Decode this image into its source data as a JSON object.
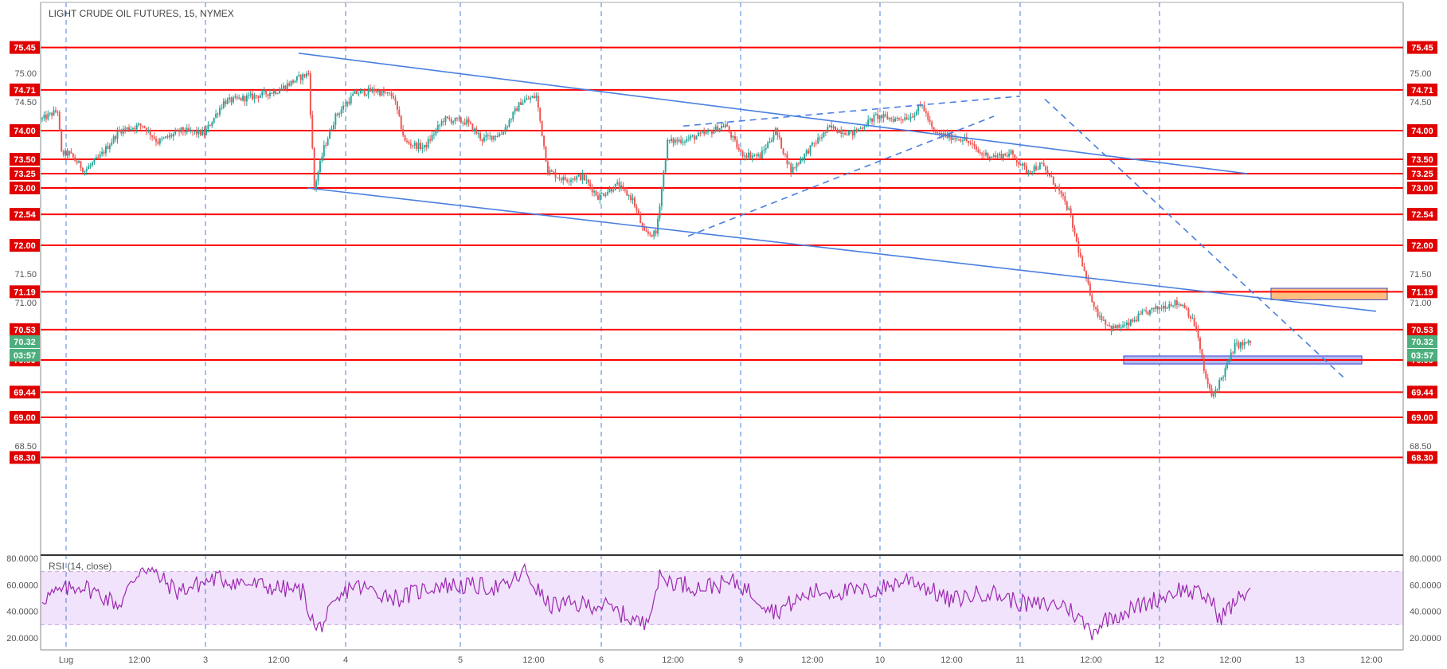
{
  "chart_data": {
    "type": "candlestick",
    "title": "LIGHT CRUDE OIL FUTURES, 15, NYMEX",
    "colors": {
      "up": "#26a69a",
      "down": "#ef5350",
      "level_line": "#ff0000",
      "trend_line": "#4a7fe0",
      "day_separator": "#4a7fe0",
      "rsi_line": "#9c27b0",
      "rsi_band": "#f1e3fb",
      "current_price_badge": "#4caf7d",
      "resistance_zone": "#ffbf80",
      "support_zone": "#b4b9f0"
    },
    "ylim": [
      68.3,
      75.7
    ],
    "y_ticks": [
      "75.00",
      "74.50",
      "74.00",
      "73.50",
      "73.00",
      "72.50",
      "72.00",
      "71.50",
      "71.00",
      "70.50",
      "70.00",
      "69.50",
      "69.00",
      "68.50"
    ],
    "x_ticks": [
      "Lug",
      "12:00",
      "3",
      "12:00",
      "4",
      "5",
      "12:00",
      "6",
      "12:00",
      "9",
      "12:00",
      "10",
      "12:00",
      "11",
      "12:00",
      "12",
      "12:00",
      "13",
      "12:00"
    ],
    "day_separator_labels": [
      "Lug",
      "3",
      "4",
      "5",
      "6",
      "9",
      "10",
      "11",
      "12"
    ],
    "levels": [
      {
        "value": 75.45,
        "label": "75.45"
      },
      {
        "value": 74.71,
        "label": "74.71"
      },
      {
        "value": 74.0,
        "label": "74.00"
      },
      {
        "value": 73.5,
        "label": "73.50"
      },
      {
        "value": 73.25,
        "label": "73.25"
      },
      {
        "value": 73.0,
        "label": "73.00"
      },
      {
        "value": 72.54,
        "label": "72.54"
      },
      {
        "value": 72.0,
        "label": "72.00"
      },
      {
        "value": 71.19,
        "label": "71.19"
      },
      {
        "value": 70.53,
        "label": "70.53"
      },
      {
        "value": 70.0,
        "label": "70.00"
      },
      {
        "value": 69.44,
        "label": "69.44"
      },
      {
        "value": 69.0,
        "label": "69.00"
      },
      {
        "value": 68.3,
        "label": "68.30"
      }
    ],
    "last_price": "70.32",
    "countdown": "03:57",
    "zones": [
      {
        "kind": "resistance",
        "from": "Jul 12 ~15:00",
        "to": "Jul 13 ~03:00",
        "low": 71.05,
        "high": 71.25
      },
      {
        "kind": "support",
        "from": "Jul 11 ~15:30",
        "to": "Jul 13 ~02:00",
        "low": 69.93,
        "high": 70.07
      }
    ],
    "trendlines": [
      {
        "style": "solid",
        "from": [
          "Jul 3 ~13:00",
          75.35
        ],
        "to": [
          "Jul 12 ~19:00",
          73.25
        ]
      },
      {
        "style": "solid",
        "from": [
          "Jul 3 ~13:00",
          73.0
        ],
        "to": [
          "Jul 13 ~05:00",
          70.85
        ]
      },
      {
        "style": "dashed",
        "from": [
          "Jul 6 ~12:00",
          74.08
        ],
        "to": [
          "Jul 10 ~23:00",
          74.6
        ]
      },
      {
        "style": "dashed",
        "from": [
          "Jul 6 ~12:00",
          72.16
        ],
        "to": [
          "Jul 10 ~22:00",
          74.25
        ]
      },
      {
        "style": "dashed",
        "from": [
          "Jul 11 ~01:00",
          74.55
        ],
        "to": [
          "Jul 13 ~02:00",
          69.66
        ]
      }
    ],
    "price_path": [
      [
        0,
        74.2
      ],
      [
        8,
        74.35
      ],
      [
        10,
        73.6
      ],
      [
        14,
        73.6
      ],
      [
        22,
        73.3
      ],
      [
        30,
        73.55
      ],
      [
        40,
        74.0
      ],
      [
        52,
        74.1
      ],
      [
        60,
        73.8
      ],
      [
        72,
        74.0
      ],
      [
        84,
        73.95
      ],
      [
        94,
        74.5
      ],
      [
        110,
        74.6
      ],
      [
        122,
        74.7
      ],
      [
        132,
        74.9
      ],
      [
        138,
        75.0
      ],
      [
        141,
        73.0
      ],
      [
        146,
        73.7
      ],
      [
        152,
        74.25
      ],
      [
        162,
        74.65
      ],
      [
        172,
        74.7
      ],
      [
        182,
        74.6
      ],
      [
        188,
        73.8
      ],
      [
        198,
        73.7
      ],
      [
        208,
        74.2
      ],
      [
        220,
        74.15
      ],
      [
        228,
        73.85
      ],
      [
        238,
        73.95
      ],
      [
        248,
        74.5
      ],
      [
        256,
        74.6
      ],
      [
        262,
        73.3
      ],
      [
        270,
        73.15
      ],
      [
        280,
        73.2
      ],
      [
        288,
        72.85
      ],
      [
        298,
        73.05
      ],
      [
        306,
        72.8
      ],
      [
        312,
        72.2
      ],
      [
        318,
        72.2
      ],
      [
        324,
        73.8
      ],
      [
        334,
        73.85
      ],
      [
        344,
        73.95
      ],
      [
        354,
        74.1
      ],
      [
        362,
        73.6
      ],
      [
        372,
        73.55
      ],
      [
        380,
        74.0
      ],
      [
        388,
        73.3
      ],
      [
        398,
        73.7
      ],
      [
        408,
        74.05
      ],
      [
        420,
        73.95
      ],
      [
        432,
        74.25
      ],
      [
        442,
        74.2
      ],
      [
        450,
        74.25
      ],
      [
        456,
        74.45
      ],
      [
        462,
        73.95
      ],
      [
        470,
        73.9
      ],
      [
        478,
        73.85
      ],
      [
        486,
        73.6
      ],
      [
        494,
        73.55
      ],
      [
        502,
        73.6
      ],
      [
        510,
        73.3
      ],
      [
        518,
        73.4
      ],
      [
        526,
        73.0
      ],
      [
        532,
        72.6
      ],
      [
        540,
        71.5
      ],
      [
        546,
        70.85
      ],
      [
        554,
        70.55
      ],
      [
        562,
        70.6
      ],
      [
        570,
        70.8
      ],
      [
        578,
        70.9
      ],
      [
        586,
        71.0
      ],
      [
        592,
        70.95
      ],
      [
        598,
        70.55
      ],
      [
        602,
        69.8
      ],
      [
        606,
        69.35
      ],
      [
        612,
        69.75
      ],
      [
        618,
        70.25
      ],
      [
        626,
        70.3
      ]
    ],
    "rsi": {
      "title": "RSI (14, close)",
      "ylim": [
        10,
        86
      ],
      "y_ticks": [
        "80.0000",
        "60.0000",
        "40.0000",
        "20.0000"
      ],
      "bands": [
        30,
        70
      ],
      "anchors": [
        [
          0,
          50
        ],
        [
          20,
          60
        ],
        [
          40,
          45
        ],
        [
          52,
          75
        ],
        [
          70,
          55
        ],
        [
          90,
          65
        ],
        [
          110,
          60
        ],
        [
          135,
          55
        ],
        [
          142,
          25
        ],
        [
          160,
          60
        ],
        [
          185,
          50
        ],
        [
          205,
          60
        ],
        [
          240,
          58
        ],
        [
          250,
          70
        ],
        [
          262,
          45
        ],
        [
          290,
          45
        ],
        [
          312,
          30
        ],
        [
          320,
          65
        ],
        [
          340,
          58
        ],
        [
          360,
          62
        ],
        [
          380,
          40
        ],
        [
          400,
          55
        ],
        [
          430,
          55
        ],
        [
          450,
          65
        ],
        [
          470,
          48
        ],
        [
          490,
          55
        ],
        [
          510,
          45
        ],
        [
          530,
          45
        ],
        [
          544,
          25
        ],
        [
          552,
          35
        ],
        [
          565,
          42
        ],
        [
          590,
          57
        ],
        [
          605,
          50
        ],
        [
          610,
          35
        ],
        [
          626,
          58
        ]
      ]
    }
  }
}
